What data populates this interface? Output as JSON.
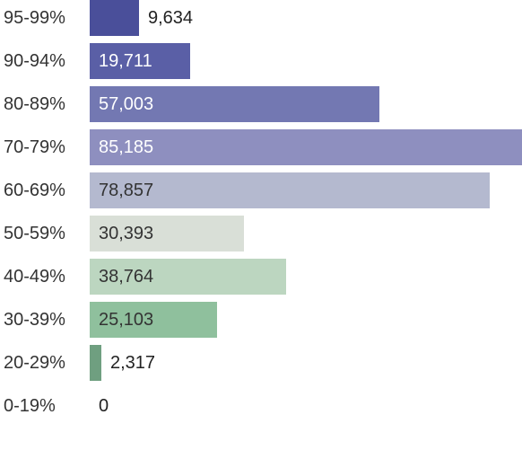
{
  "chart_data": {
    "type": "bar",
    "orientation": "horizontal",
    "categories": [
      "95-99%",
      "90-94%",
      "80-89%",
      "70-79%",
      "60-69%",
      "50-59%",
      "40-49%",
      "30-39%",
      "20-29%",
      "0-19%"
    ],
    "values": [
      9634,
      19711,
      57003,
      85185,
      78857,
      30393,
      38764,
      25103,
      2317,
      0
    ],
    "value_labels": [
      "9,634",
      "19,711",
      "57,003",
      "85,185",
      "78,857",
      "30,393",
      "38,764",
      "25,103",
      "2,317",
      "0"
    ],
    "colors": [
      "#4a4f9a",
      "#5a5fa6",
      "#7378b2",
      "#8e8fbf",
      "#b4b9cf",
      "#d9dfd7",
      "#bcd6c0",
      "#8fc09d",
      "#6f9f80",
      "#6f9f80"
    ],
    "label_colors": [
      "#222222",
      "#ffffff",
      "#ffffff",
      "#ffffff",
      "#333333",
      "#333333",
      "#333333",
      "#333333",
      "#222222",
      "#222222"
    ],
    "xlim": [
      0,
      85185
    ],
    "grid": false,
    "legend": "none",
    "title": "",
    "xlabel": "",
    "ylabel": ""
  }
}
